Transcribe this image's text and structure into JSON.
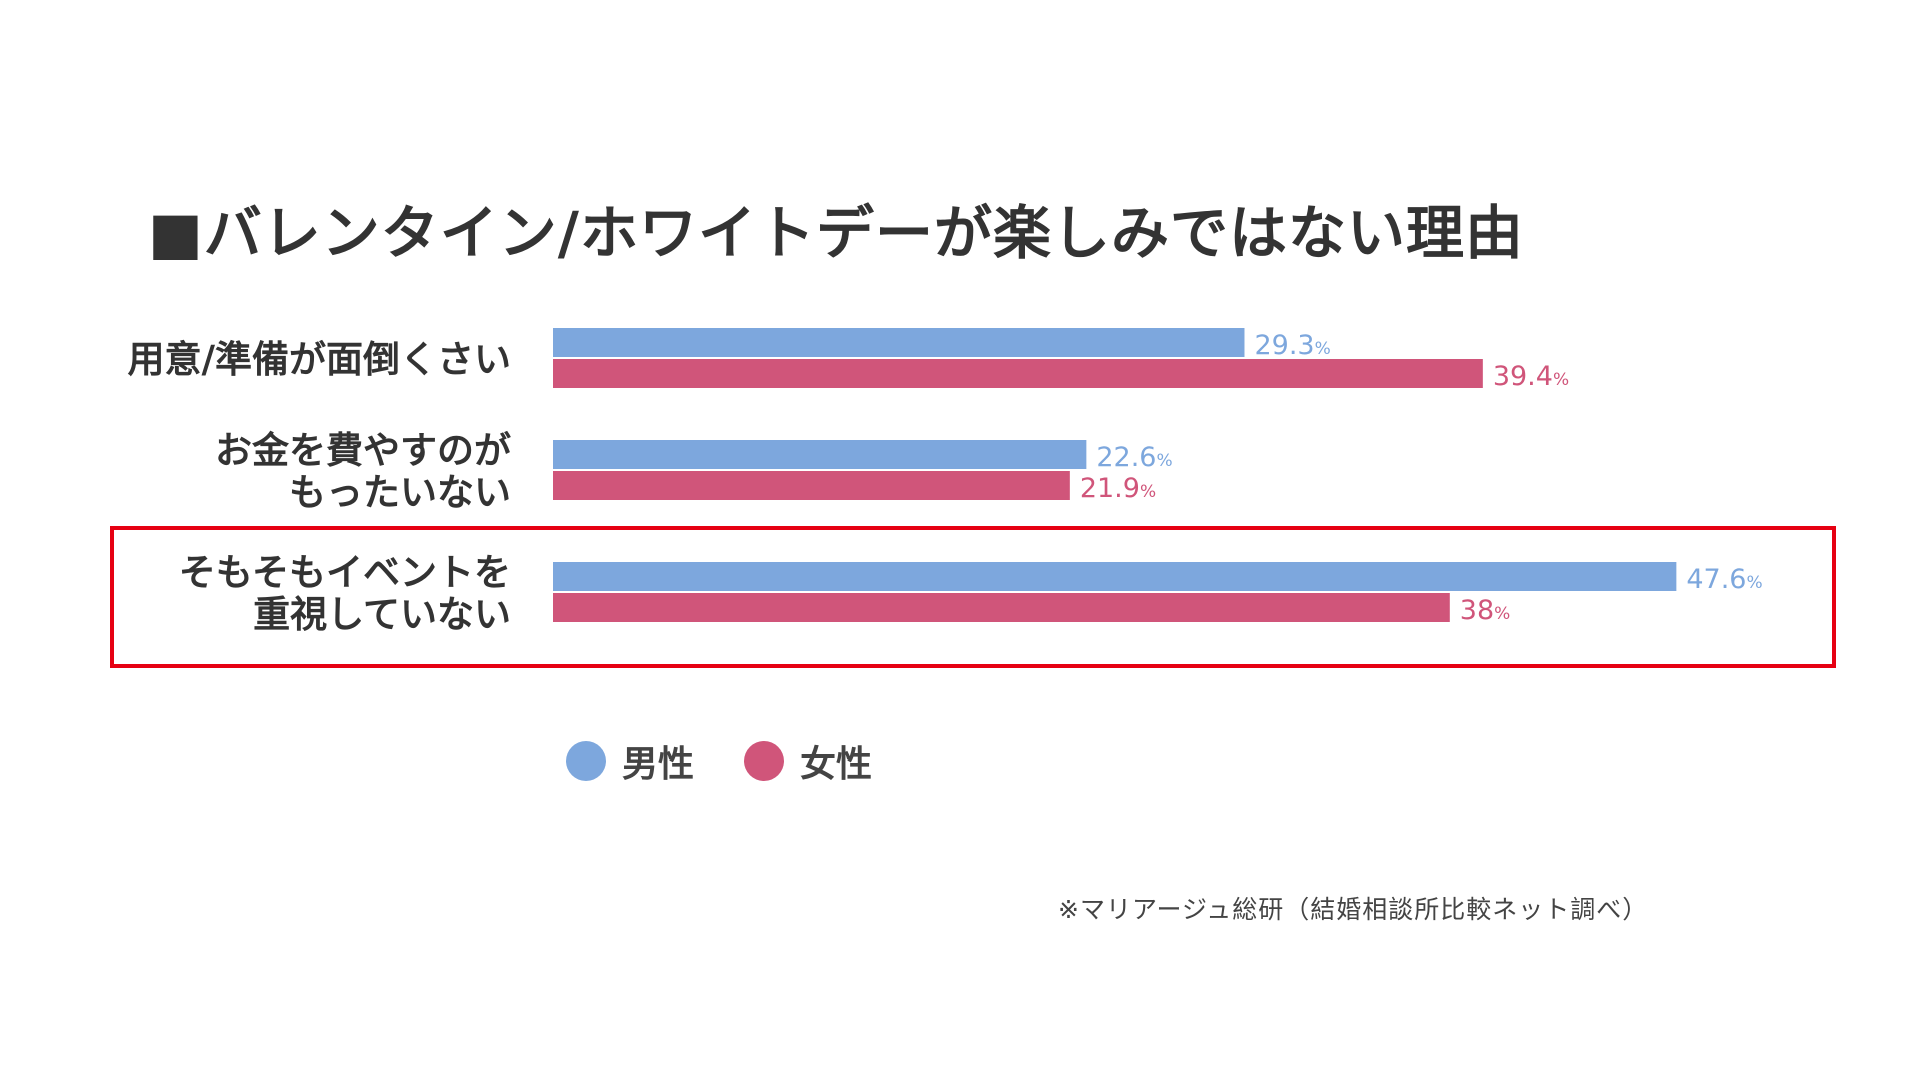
{
  "chart_data": {
    "type": "bar",
    "orientation": "horizontal",
    "title": "■バレンタイン/ホワイトデーが楽しみではない理由",
    "categories": [
      [
        "用意/準備が面倒くさい"
      ],
      [
        "お金を費やすのが",
        "もったいない"
      ],
      [
        "そもそもイベントを",
        "重視していない"
      ]
    ],
    "series": [
      {
        "name": "男性",
        "color": "#7da7dd",
        "values": [
          29.3,
          22.6,
          47.6
        ]
      },
      {
        "name": "女性",
        "color": "#d0557a",
        "values": [
          39.4,
          21.9,
          38
        ]
      }
    ],
    "value_suffix": "%",
    "xlim": [
      0,
      50
    ],
    "grid": false,
    "legend": "bottom-left",
    "highlighted_category_index": 2,
    "highlight_color": "#e60012"
  },
  "source_note": "※マリアージュ総研（結婚相談所比較ネット調べ）"
}
